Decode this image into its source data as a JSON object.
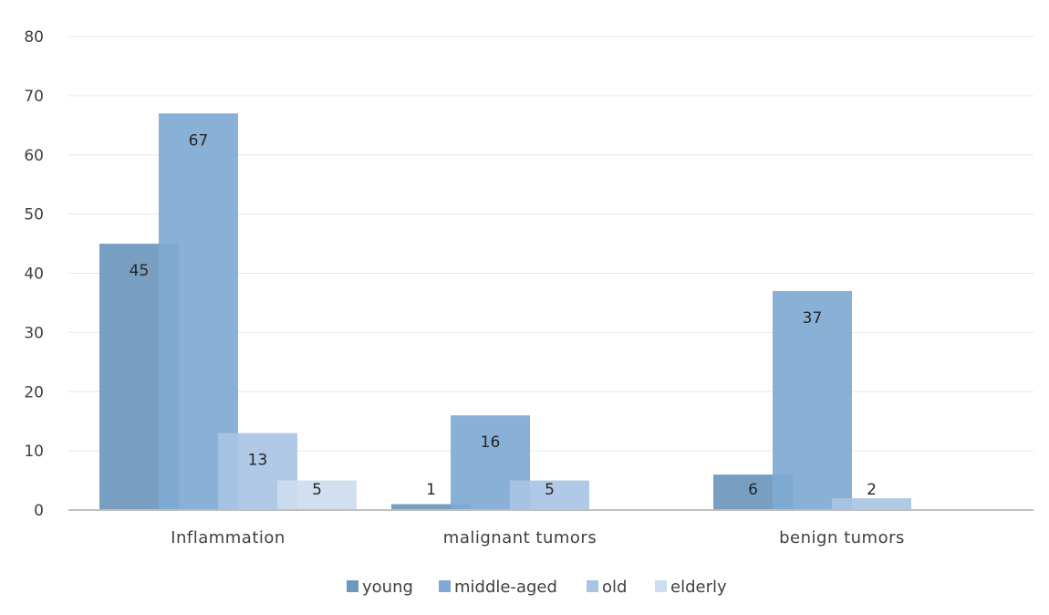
{
  "chart_data": {
    "type": "bar",
    "title": "",
    "xlabel": "",
    "ylabel": "",
    "categories": [
      "Inflammation",
      "malignant tumors",
      "benign tumors"
    ],
    "series": [
      {
        "name": "young",
        "values": [
          45,
          1,
          6
        ],
        "labels": [
          "45",
          "1",
          "6"
        ],
        "color": "#6d97bd"
      },
      {
        "name": "middle-aged",
        "values": [
          67,
          16,
          37
        ],
        "labels": [
          "67",
          "16",
          "37"
        ],
        "color": "#7fa9d3"
      },
      {
        "name": "old",
        "values": [
          13,
          5,
          2
        ],
        "labels": [
          "13",
          "5",
          "2"
        ],
        "color": "#a9c4e4"
      },
      {
        "name": "elderly",
        "values": [
          5,
          0,
          0
        ],
        "labels": [
          "5",
          "",
          ""
        ],
        "color": "#cddcef"
      }
    ],
    "ylim": [
      0,
      80
    ],
    "yticks": [
      0,
      10,
      20,
      30,
      40,
      50,
      60,
      70,
      80
    ],
    "ytick_labels": [
      "0",
      "10",
      "20",
      "30",
      "40",
      "50",
      "60",
      "70",
      "80"
    ],
    "grid": true,
    "legend_position": "bottom",
    "gridline_color": "#e6e6e6",
    "axis_color": "#bfbfbf"
  }
}
